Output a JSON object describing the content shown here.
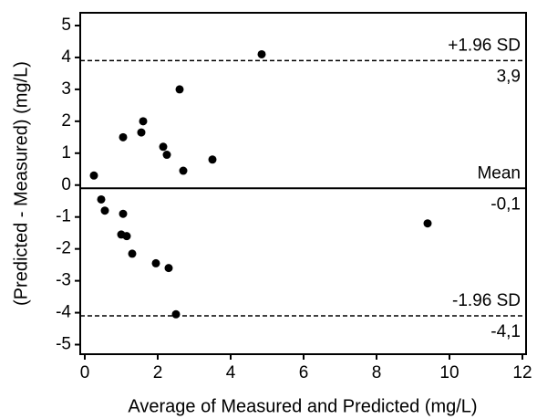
{
  "chart_data": {
    "type": "scatter",
    "xlabel": "Average of Measured and Predicted (mg/L)",
    "ylabel": "(Predicted - Measured) (mg/L)",
    "xlim": [
      -0.125,
      12.1
    ],
    "ylim": [
      -5.3,
      5.4
    ],
    "xticks": [
      0,
      2,
      4,
      6,
      8,
      10,
      12
    ],
    "yticks": [
      -5,
      -4,
      -3,
      -2,
      -1,
      0,
      1,
      2,
      3,
      4,
      5
    ],
    "color": "#000000",
    "x": [
      4.85,
      2.6,
      1.6,
      1.05,
      1.55,
      2.15,
      2.25,
      2.7,
      3.5,
      0.25,
      0.45,
      0.55,
      1.05,
      1.0,
      1.15,
      1.3,
      1.95,
      2.3,
      2.5,
      9.4
    ],
    "values": [
      4.1,
      3.0,
      2.0,
      1.5,
      1.65,
      1.2,
      0.95,
      0.45,
      0.8,
      0.3,
      -0.45,
      -0.8,
      -0.9,
      -1.55,
      -1.6,
      -2.15,
      -2.45,
      -2.6,
      -4.05,
      -1.2
    ],
    "reference_lines": [
      {
        "name": "+1.96 SD",
        "value": 3.9,
        "value_label": "3,9",
        "style": "dashed"
      },
      {
        "name": "Mean",
        "value": -0.1,
        "value_label": "-0,1",
        "style": "solid"
      },
      {
        "name": "-1.96 SD",
        "value": -4.1,
        "value_label": "-4,1",
        "style": "dashed"
      }
    ]
  }
}
